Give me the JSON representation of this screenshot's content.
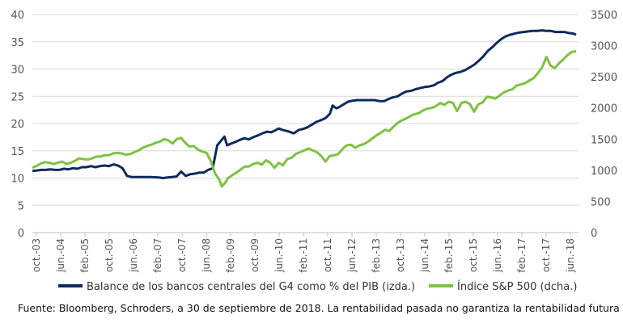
{
  "chart_data": {
    "type": "line",
    "title": "",
    "x_tick_labels": [
      "oct.-03",
      "jun.-04",
      "feb.-05",
      "oct.-05",
      "jun.-06",
      "feb.-07",
      "oct.-07",
      "jun.-08",
      "feb.-09",
      "oct.-09",
      "jun.-10",
      "feb.-11",
      "oct.-11",
      "jun.-12",
      "feb.-13",
      "oct.-13",
      "jun.-14",
      "feb.-15",
      "oct.-15",
      "jun.-16",
      "feb.-17",
      "oct.-17",
      "jun.-18"
    ],
    "y_left": {
      "ylim": [
        0,
        40
      ],
      "ticks": [
        "0",
        "5",
        "10",
        "15",
        "20",
        "25",
        "30",
        "35",
        "40"
      ]
    },
    "y_right": {
      "ylim": [
        0,
        3500
      ],
      "ticks": [
        "0",
        "500",
        "1000",
        "1500",
        "2000",
        "2500",
        "3000",
        "3500"
      ]
    },
    "series": [
      {
        "name": "Balance de los bancos centrales del G4 como % del PIB (izda.)",
        "axis": "left",
        "color": "#0d2b5c",
        "points": [
          [
            0,
            11.3
          ],
          [
            0.5,
            11.4
          ],
          [
            1,
            11.5
          ],
          [
            1.5,
            11.5
          ],
          [
            2,
            11.6
          ],
          [
            2.5,
            11.5
          ],
          [
            3,
            11.5
          ],
          [
            3.5,
            11.7
          ],
          [
            4,
            11.6
          ],
          [
            4.5,
            11.8
          ],
          [
            5,
            11.7
          ],
          [
            5.5,
            12.0
          ],
          [
            6,
            12.0
          ],
          [
            6.5,
            12.2
          ],
          [
            7,
            12.0
          ],
          [
            7.5,
            12.2
          ],
          [
            8,
            12.3
          ],
          [
            8.5,
            12.2
          ],
          [
            9,
            12.5
          ],
          [
            9.5,
            12.3
          ],
          [
            10,
            11.8
          ],
          [
            10.5,
            10.4
          ],
          [
            11,
            10.2
          ],
          [
            12,
            10.2
          ],
          [
            13,
            10.2
          ],
          [
            14,
            10.1
          ],
          [
            14.5,
            10.0
          ],
          [
            15,
            10.1
          ],
          [
            15.5,
            10.2
          ],
          [
            16,
            10.3
          ],
          [
            16.5,
            11.2
          ],
          [
            17,
            10.4
          ],
          [
            17.5,
            10.7
          ],
          [
            18,
            10.8
          ],
          [
            18.5,
            11.0
          ],
          [
            19,
            11.0
          ],
          [
            19.5,
            11.5
          ],
          [
            20,
            11.8
          ],
          [
            20.5,
            16.0
          ],
          [
            21,
            17.0
          ],
          [
            21.3,
            17.6
          ],
          [
            21.6,
            16.0
          ],
          [
            22,
            16.3
          ],
          [
            22.5,
            16.6
          ],
          [
            23,
            17.0
          ],
          [
            23.5,
            17.3
          ],
          [
            24,
            17.1
          ],
          [
            24.5,
            17.5
          ],
          [
            25,
            17.8
          ],
          [
            25.5,
            18.2
          ],
          [
            26,
            18.5
          ],
          [
            26.5,
            18.4
          ],
          [
            27,
            18.8
          ],
          [
            27.3,
            19.1
          ],
          [
            27.8,
            18.8
          ],
          [
            28.5,
            18.5
          ],
          [
            29,
            18.2
          ],
          [
            29.5,
            18.8
          ],
          [
            30,
            19.0
          ],
          [
            30.5,
            19.3
          ],
          [
            31,
            19.8
          ],
          [
            31.5,
            20.3
          ],
          [
            32,
            20.6
          ],
          [
            32.5,
            21.0
          ],
          [
            33,
            21.8
          ],
          [
            33.3,
            23.3
          ],
          [
            33.7,
            22.8
          ],
          [
            34,
            23.0
          ],
          [
            34.5,
            23.5
          ],
          [
            35,
            24.0
          ],
          [
            35.5,
            24.2
          ],
          [
            36,
            24.3
          ],
          [
            37,
            24.3
          ],
          [
            38,
            24.3
          ],
          [
            38.5,
            24.1
          ],
          [
            39,
            24.1
          ],
          [
            39.5,
            24.5
          ],
          [
            40,
            24.8
          ],
          [
            40.5,
            25.0
          ],
          [
            41,
            25.5
          ],
          [
            41.5,
            25.9
          ],
          [
            42,
            26.0
          ],
          [
            42.5,
            26.3
          ],
          [
            43,
            26.5
          ],
          [
            43.5,
            26.7
          ],
          [
            44,
            26.8
          ],
          [
            44.5,
            27.0
          ],
          [
            45,
            27.5
          ],
          [
            45.5,
            27.8
          ],
          [
            46,
            28.5
          ],
          [
            46.5,
            29.0
          ],
          [
            47,
            29.3
          ],
          [
            47.5,
            29.5
          ],
          [
            48,
            29.8
          ],
          [
            48.5,
            30.3
          ],
          [
            49,
            30.8
          ],
          [
            49.5,
            31.5
          ],
          [
            50,
            32.3
          ],
          [
            50.5,
            33.3
          ],
          [
            51,
            34.0
          ],
          [
            51.5,
            34.8
          ],
          [
            52,
            35.5
          ],
          [
            52.5,
            36.0
          ],
          [
            53,
            36.3
          ],
          [
            53.5,
            36.5
          ],
          [
            54,
            36.7
          ],
          [
            54.5,
            36.8
          ],
          [
            55,
            36.9
          ],
          [
            55.5,
            37.0
          ],
          [
            56,
            37.0
          ],
          [
            56.5,
            37.1
          ],
          [
            57,
            37.0
          ],
          [
            57.5,
            37.0
          ],
          [
            58,
            36.8
          ],
          [
            58.5,
            36.8
          ],
          [
            59,
            36.8
          ],
          [
            59.5,
            36.6
          ],
          [
            60,
            36.5
          ],
          [
            60.3,
            36.3
          ]
        ]
      },
      {
        "name": "Índice S&P 500 (dcha.)",
        "axis": "right",
        "color": "#7dc242",
        "points": [
          [
            0,
            1040
          ],
          [
            0.5,
            1070
          ],
          [
            1,
            1110
          ],
          [
            1.5,
            1130
          ],
          [
            2,
            1120
          ],
          [
            2.5,
            1100
          ],
          [
            3,
            1120
          ],
          [
            3.5,
            1140
          ],
          [
            4,
            1100
          ],
          [
            4.5,
            1120
          ],
          [
            5,
            1150
          ],
          [
            5.5,
            1190
          ],
          [
            6,
            1180
          ],
          [
            6.5,
            1170
          ],
          [
            7,
            1190
          ],
          [
            7.5,
            1220
          ],
          [
            8,
            1220
          ],
          [
            8.5,
            1240
          ],
          [
            9,
            1240
          ],
          [
            9.5,
            1270
          ],
          [
            10,
            1280
          ],
          [
            10.5,
            1270
          ],
          [
            11,
            1250
          ],
          [
            11.5,
            1260
          ],
          [
            12,
            1290
          ],
          [
            12.5,
            1320
          ],
          [
            13,
            1360
          ],
          [
            13.5,
            1390
          ],
          [
            14,
            1410
          ],
          [
            14.5,
            1440
          ],
          [
            15,
            1460
          ],
          [
            15.5,
            1500
          ],
          [
            16,
            1480
          ],
          [
            16.5,
            1430
          ],
          [
            17,
            1500
          ],
          [
            17.5,
            1520
          ],
          [
            18,
            1440
          ],
          [
            18.5,
            1380
          ],
          [
            19,
            1390
          ],
          [
            19.5,
            1330
          ],
          [
            20,
            1300
          ],
          [
            20.5,
            1280
          ],
          [
            21,
            1150
          ],
          [
            21.5,
            950
          ],
          [
            22,
            850
          ],
          [
            22.3,
            740
          ],
          [
            22.7,
            800
          ],
          [
            23,
            870
          ],
          [
            23.5,
            920
          ],
          [
            24,
            960
          ],
          [
            24.5,
            1010
          ],
          [
            25,
            1060
          ],
          [
            25.5,
            1060
          ],
          [
            26,
            1100
          ],
          [
            26.5,
            1120
          ],
          [
            27,
            1090
          ],
          [
            27.5,
            1160
          ],
          [
            28,
            1120
          ],
          [
            28.5,
            1040
          ],
          [
            29,
            1120
          ],
          [
            29.5,
            1080
          ],
          [
            30,
            1180
          ],
          [
            30.5,
            1200
          ],
          [
            31,
            1260
          ],
          [
            31.5,
            1290
          ],
          [
            32,
            1320
          ],
          [
            32.5,
            1350
          ],
          [
            33,
            1320
          ],
          [
            33.5,
            1290
          ],
          [
            34,
            1230
          ],
          [
            34.5,
            1140
          ],
          [
            35,
            1230
          ],
          [
            35.5,
            1240
          ],
          [
            36,
            1260
          ],
          [
            36.5,
            1340
          ],
          [
            37,
            1400
          ],
          [
            37.5,
            1410
          ],
          [
            38,
            1360
          ],
          [
            38.5,
            1400
          ],
          [
            39,
            1420
          ],
          [
            39.5,
            1460
          ],
          [
            40,
            1510
          ],
          [
            40.5,
            1560
          ],
          [
            41,
            1600
          ],
          [
            41.5,
            1650
          ],
          [
            42,
            1630
          ],
          [
            42.5,
            1700
          ],
          [
            43,
            1760
          ],
          [
            43.5,
            1800
          ],
          [
            44,
            1830
          ],
          [
            44.5,
            1870
          ],
          [
            45,
            1900
          ],
          [
            45.5,
            1920
          ],
          [
            46,
            1960
          ],
          [
            46.5,
            1990
          ],
          [
            47,
            2000
          ],
          [
            47.5,
            2030
          ],
          [
            48,
            2080
          ],
          [
            48.5,
            2050
          ],
          [
            49,
            2100
          ],
          [
            49.5,
            2080
          ],
          [
            50,
            1950
          ],
          [
            50.5,
            2080
          ],
          [
            51,
            2100
          ],
          [
            51.5,
            2060
          ],
          [
            52,
            1940
          ],
          [
            52.5,
            2060
          ],
          [
            53,
            2090
          ],
          [
            53.5,
            2180
          ],
          [
            54,
            2170
          ],
          [
            54.5,
            2150
          ],
          [
            55,
            2200
          ],
          [
            55.5,
            2250
          ],
          [
            56,
            2280
          ],
          [
            56.5,
            2300
          ],
          [
            57,
            2360
          ],
          [
            57.5,
            2380
          ],
          [
            58,
            2400
          ],
          [
            58.5,
            2440
          ],
          [
            59,
            2480
          ],
          [
            59.5,
            2560
          ],
          [
            60,
            2650
          ],
          [
            60.5,
            2820
          ],
          [
            61,
            2680
          ],
          [
            61.5,
            2640
          ],
          [
            62,
            2720
          ],
          [
            62.5,
            2780
          ],
          [
            63,
            2850
          ],
          [
            63.5,
            2900
          ],
          [
            64,
            2910
          ]
        ]
      }
    ],
    "legend_position": "bottom",
    "source_note": "Fuente: Bloomberg, Schroders, a 30 de septiembre de 2018. La rentabilidad pasada no garantiza la rentabilidad futura"
  }
}
